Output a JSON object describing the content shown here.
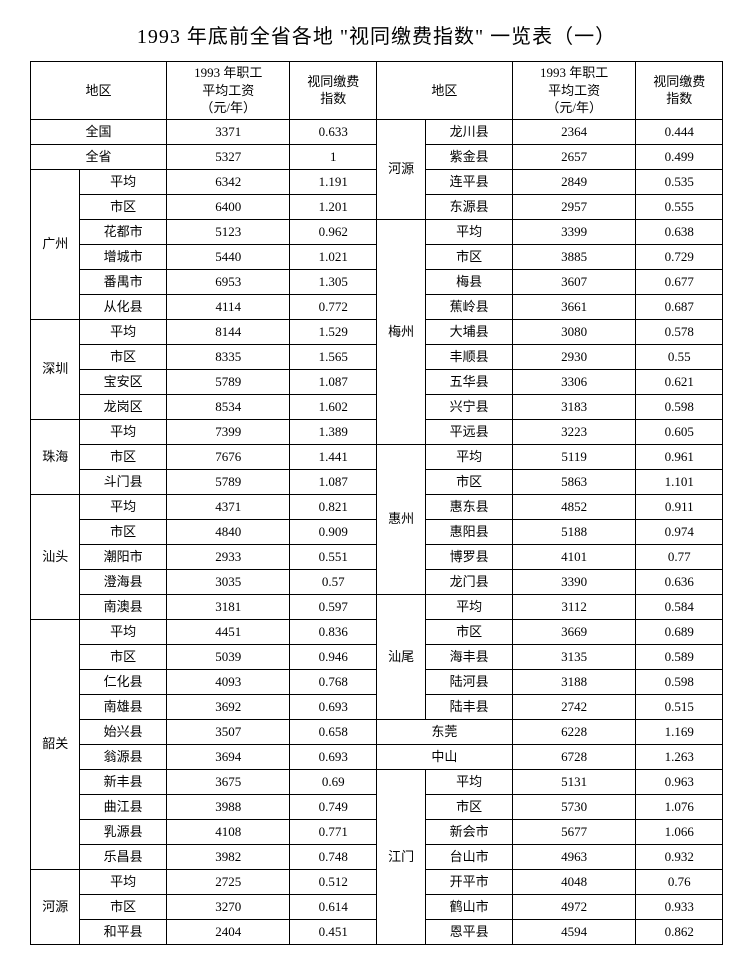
{
  "title": "1993 年底前全省各地 \"视同缴费指数\" 一览表（一）",
  "header": {
    "region": "地区",
    "wage": "1993 年职工\n平均工资\n（元/年）",
    "index": "视同缴费\n指数"
  },
  "nation": {
    "label": "全国",
    "wage": "3371",
    "index": "0.633"
  },
  "province": {
    "label": "全省",
    "wage": "5327",
    "index": "1"
  },
  "gz": {
    "label": "广州",
    "rows": [
      {
        "sub": "平均",
        "w": "6342",
        "i": "1.191"
      },
      {
        "sub": "市区",
        "w": "6400",
        "i": "1.201"
      },
      {
        "sub": "花都市",
        "w": "5123",
        "i": "0.962"
      },
      {
        "sub": "增城市",
        "w": "5440",
        "i": "1.021"
      },
      {
        "sub": "番禺市",
        "w": "6953",
        "i": "1.305"
      },
      {
        "sub": "从化县",
        "w": "4114",
        "i": "0.772"
      }
    ]
  },
  "sz": {
    "label": "深圳",
    "rows": [
      {
        "sub": "平均",
        "w": "8144",
        "i": "1.529"
      },
      {
        "sub": "市区",
        "w": "8335",
        "i": "1.565"
      },
      {
        "sub": "宝安区",
        "w": "5789",
        "i": "1.087"
      },
      {
        "sub": "龙岗区",
        "w": "8534",
        "i": "1.602"
      }
    ]
  },
  "zh": {
    "label": "珠海",
    "rows": [
      {
        "sub": "平均",
        "w": "7399",
        "i": "1.389"
      },
      {
        "sub": "市区",
        "w": "7676",
        "i": "1.441"
      },
      {
        "sub": "斗门县",
        "w": "5789",
        "i": "1.087"
      }
    ]
  },
  "st": {
    "label": "汕头",
    "rows": [
      {
        "sub": "平均",
        "w": "4371",
        "i": "0.821"
      },
      {
        "sub": "市区",
        "w": "4840",
        "i": "0.909"
      },
      {
        "sub": "潮阳市",
        "w": "2933",
        "i": "0.551"
      },
      {
        "sub": "澄海县",
        "w": "3035",
        "i": "0.57"
      },
      {
        "sub": "南澳县",
        "w": "3181",
        "i": "0.597"
      }
    ]
  },
  "sg": {
    "label": "韶关",
    "rows": [
      {
        "sub": "平均",
        "w": "4451",
        "i": "0.836"
      },
      {
        "sub": "市区",
        "w": "5039",
        "i": "0.946"
      },
      {
        "sub": "仁化县",
        "w": "4093",
        "i": "0.768"
      },
      {
        "sub": "南雄县",
        "w": "3692",
        "i": "0.693"
      },
      {
        "sub": "始兴县",
        "w": "3507",
        "i": "0.658"
      },
      {
        "sub": "翁源县",
        "w": "3694",
        "i": "0.693"
      },
      {
        "sub": "新丰县",
        "w": "3675",
        "i": "0.69"
      },
      {
        "sub": "曲江县",
        "w": "3988",
        "i": "0.749"
      },
      {
        "sub": "乳源县",
        "w": "4108",
        "i": "0.771"
      },
      {
        "sub": "乐昌县",
        "w": "3982",
        "i": "0.748"
      }
    ]
  },
  "hy": {
    "label": "河源",
    "rows": [
      {
        "sub": "平均",
        "w": "2725",
        "i": "0.512"
      },
      {
        "sub": "市区",
        "w": "3270",
        "i": "0.614"
      },
      {
        "sub": "和平县",
        "w": "2404",
        "i": "0.451"
      }
    ]
  },
  "hy2": {
    "label": "河源",
    "rows": [
      {
        "sub": "龙川县",
        "w": "2364",
        "i": "0.444"
      },
      {
        "sub": "紫金县",
        "w": "2657",
        "i": "0.499"
      },
      {
        "sub": "连平县",
        "w": "2849",
        "i": "0.535"
      },
      {
        "sub": "东源县",
        "w": "2957",
        "i": "0.555"
      }
    ]
  },
  "mz": {
    "label": "梅州",
    "rows": [
      {
        "sub": "平均",
        "w": "3399",
        "i": "0.638"
      },
      {
        "sub": "市区",
        "w": "3885",
        "i": "0.729"
      },
      {
        "sub": "梅县",
        "w": "3607",
        "i": "0.677"
      },
      {
        "sub": "蕉岭县",
        "w": "3661",
        "i": "0.687"
      },
      {
        "sub": "大埔县",
        "w": "3080",
        "i": "0.578"
      },
      {
        "sub": "丰顺县",
        "w": "2930",
        "i": "0.55"
      },
      {
        "sub": "五华县",
        "w": "3306",
        "i": "0.621"
      },
      {
        "sub": "兴宁县",
        "w": "3183",
        "i": "0.598"
      },
      {
        "sub": "平远县",
        "w": "3223",
        "i": "0.605"
      }
    ]
  },
  "hz": {
    "label": "惠州",
    "rows": [
      {
        "sub": "平均",
        "w": "5119",
        "i": "0.961"
      },
      {
        "sub": "市区",
        "w": "5863",
        "i": "1.101"
      },
      {
        "sub": "惠东县",
        "w": "4852",
        "i": "0.911"
      },
      {
        "sub": "惠阳县",
        "w": "5188",
        "i": "0.974"
      },
      {
        "sub": "博罗县",
        "w": "4101",
        "i": "0.77"
      },
      {
        "sub": "龙门县",
        "w": "3390",
        "i": "0.636"
      }
    ]
  },
  "sw": {
    "label": "汕尾",
    "rows": [
      {
        "sub": "平均",
        "w": "3112",
        "i": "0.584"
      },
      {
        "sub": "市区",
        "w": "3669",
        "i": "0.689"
      },
      {
        "sub": "海丰县",
        "w": "3135",
        "i": "0.589"
      },
      {
        "sub": "陆河县",
        "w": "3188",
        "i": "0.598"
      },
      {
        "sub": "陆丰县",
        "w": "2742",
        "i": "0.515"
      }
    ]
  },
  "dg": {
    "label": "东莞",
    "w": "6228",
    "i": "1.169"
  },
  "zs": {
    "label": "中山",
    "w": "6728",
    "i": "1.263"
  },
  "jm": {
    "label": "江门",
    "rows": [
      {
        "sub": "平均",
        "w": "5131",
        "i": "0.963"
      },
      {
        "sub": "市区",
        "w": "5730",
        "i": "1.076"
      },
      {
        "sub": "新会市",
        "w": "5677",
        "i": "1.066"
      },
      {
        "sub": "台山市",
        "w": "4963",
        "i": "0.932"
      },
      {
        "sub": "开平市",
        "w": "4048",
        "i": "0.76"
      },
      {
        "sub": "鹤山市",
        "w": "4972",
        "i": "0.933"
      },
      {
        "sub": "恩平县",
        "w": "4594",
        "i": "0.862"
      }
    ]
  }
}
